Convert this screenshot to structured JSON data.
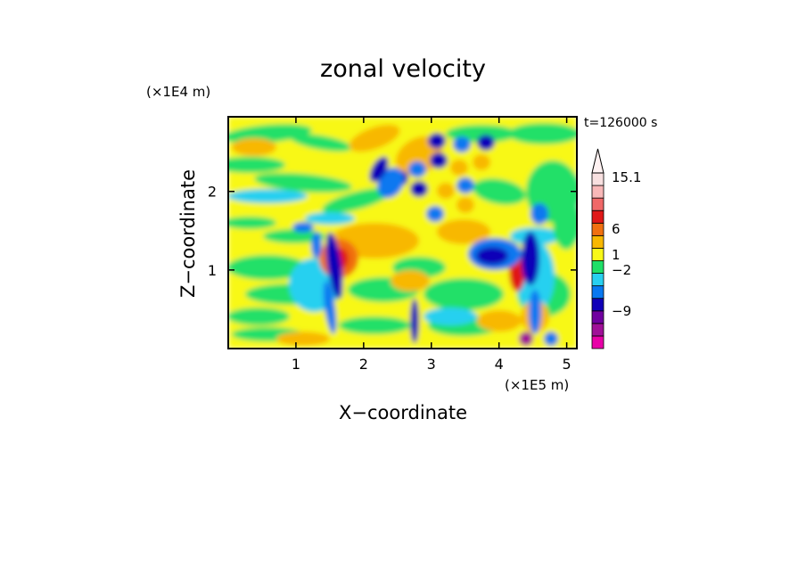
{
  "chart_data": {
    "type": "heatmap",
    "title": "zonal velocity",
    "time_label": "t=126000 s",
    "xlabel": "X−coordinate",
    "ylabel": "Z−coordinate",
    "x_scale_label": "(×1E5 m)",
    "y_scale_label": "(×1E4 m)",
    "xlim": [
      0,
      5.15
    ],
    "ylim": [
      0,
      2.95
    ],
    "x_ticks": [
      1,
      2,
      3,
      4,
      5
    ],
    "y_ticks": [
      1,
      2
    ],
    "x_tick_labels": [
      "1",
      "2",
      "3",
      "4",
      "5"
    ],
    "y_tick_labels": [
      "1",
      "2"
    ],
    "grid": false,
    "colorbar": {
      "levels": [
        "-12",
        "-9",
        "-6",
        "-2",
        "-1",
        "1",
        "2",
        "6",
        "9",
        "12",
        "15.1"
      ],
      "labeled_levels": [
        "15.1",
        "6",
        "1",
        "−2",
        "−9"
      ],
      "colors": [
        "#e800a8",
        "#a01098",
        "#7000a0",
        "#1000b8",
        "#0878f0",
        "#28d0f0",
        "#20e068",
        "#f8f818",
        "#f8b800",
        "#f07010",
        "#e01818",
        "#f06868",
        "#f8b8b8",
        "#f8e0e0"
      ],
      "extend": "max"
    }
  }
}
